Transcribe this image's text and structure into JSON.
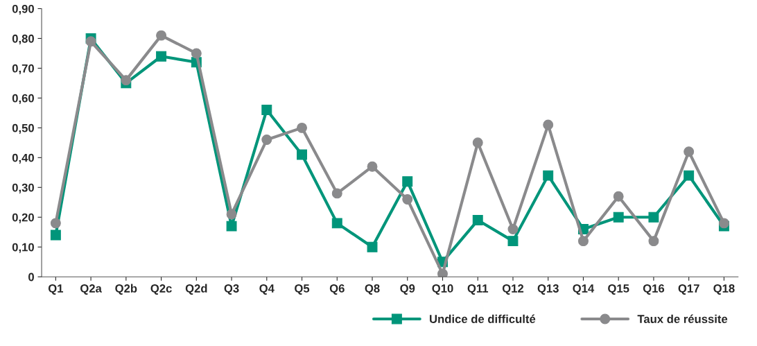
{
  "chart_data": {
    "type": "line",
    "categories": [
      "Q1",
      "Q2a",
      "Q2b",
      "Q2c",
      "Q2d",
      "Q3",
      "Q4",
      "Q5",
      "Q6",
      "Q8",
      "Q9",
      "Q10",
      "Q11",
      "Q12",
      "Q13",
      "Q14",
      "Q15",
      "Q16",
      "Q17",
      "Q18"
    ],
    "series": [
      {
        "name": "Undice de difficulté",
        "color": "#00957a",
        "marker": "square",
        "values": [
          0.14,
          0.8,
          0.65,
          0.74,
          0.72,
          0.17,
          0.56,
          0.41,
          0.18,
          0.1,
          0.32,
          0.05,
          0.19,
          0.12,
          0.34,
          0.16,
          0.2,
          0.2,
          0.34,
          0.17
        ]
      },
      {
        "name": "Taux de réussite",
        "color": "#8a8a8c",
        "marker": "circle",
        "values": [
          0.18,
          0.79,
          0.66,
          0.81,
          0.75,
          0.21,
          0.46,
          0.5,
          0.28,
          0.37,
          0.26,
          0.01,
          0.45,
          0.16,
          0.51,
          0.12,
          0.27,
          0.12,
          0.42,
          0.18
        ]
      }
    ],
    "ylim": [
      0,
      0.9
    ],
    "yticks": [
      0,
      {
        "value": 0.1,
        "label": "0,10"
      },
      {
        "value": 0.2,
        "label": "0,20"
      },
      {
        "value": 0.3,
        "label": "0,30"
      },
      {
        "value": 0.4,
        "label": "0,40"
      },
      {
        "value": 0.5,
        "label": "0,50"
      },
      {
        "value": 0.6,
        "label": "0,60"
      },
      {
        "value": 0.7,
        "label": "0,70"
      },
      {
        "value": 0.8,
        "label": "0,80"
      },
      {
        "value": 0.9,
        "label": "0,90"
      }
    ],
    "grid": false,
    "legend": "bottom right",
    "line_style": "solid"
  }
}
